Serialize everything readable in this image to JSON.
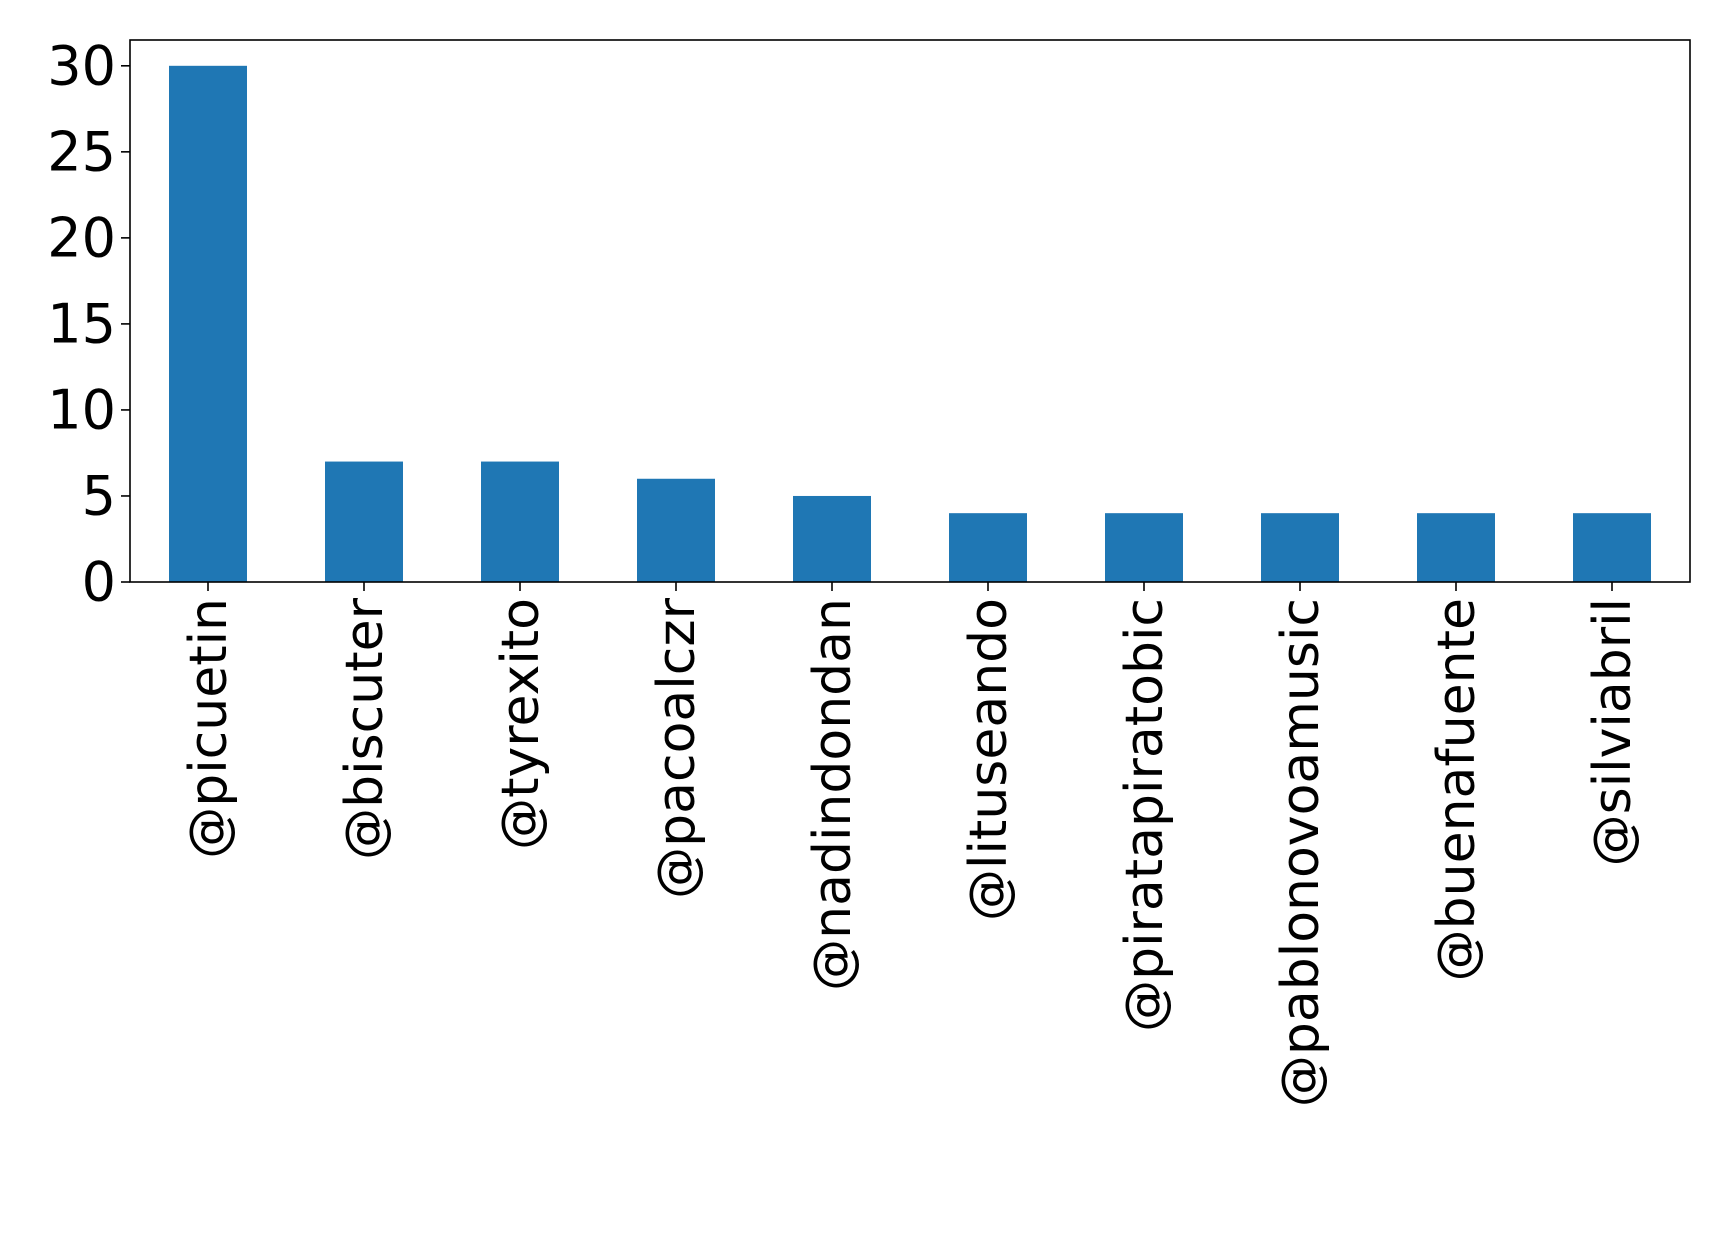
{
  "chart_data": {
    "type": "bar",
    "title": "",
    "xlabel": "",
    "ylabel": "",
    "categories": [
      "@picuetin",
      "@biscuter",
      "@tyrexito",
      "@pacoalczr",
      "@nadindondan",
      "@lituseando",
      "@piratapiratobic",
      "@pablonovoamusic",
      "@buenafuente",
      "@silviabril"
    ],
    "values": [
      30,
      7,
      7,
      6,
      5,
      4,
      4,
      4,
      4,
      4
    ],
    "ylim": [
      0,
      31.5
    ],
    "yticks": [
      0,
      5,
      10,
      15,
      20,
      25,
      30
    ],
    "grid": false,
    "legend": "none",
    "bar_color": "#1f77b4"
  }
}
